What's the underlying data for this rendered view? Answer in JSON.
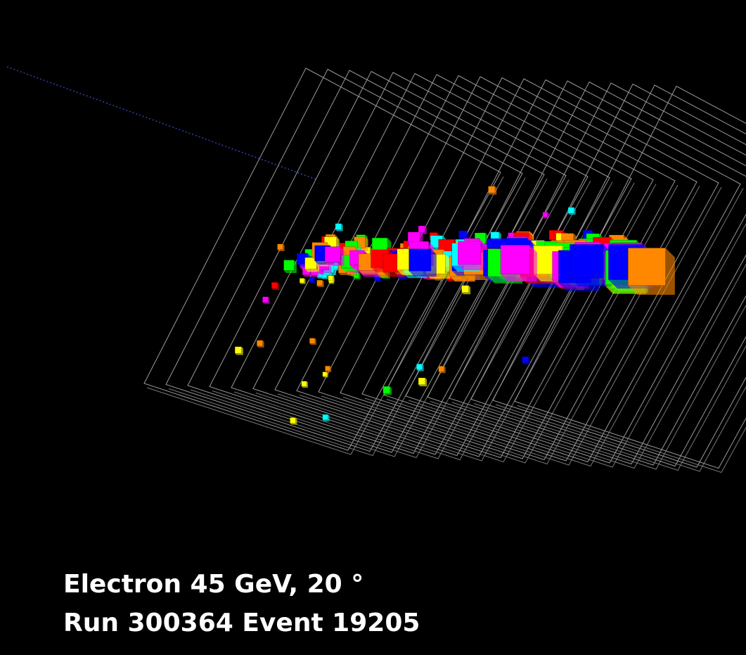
{
  "caption": {
    "lines": [
      "Electron 45 GeV, 20 °",
      "Run 300364 Event 19205"
    ]
  }
}
